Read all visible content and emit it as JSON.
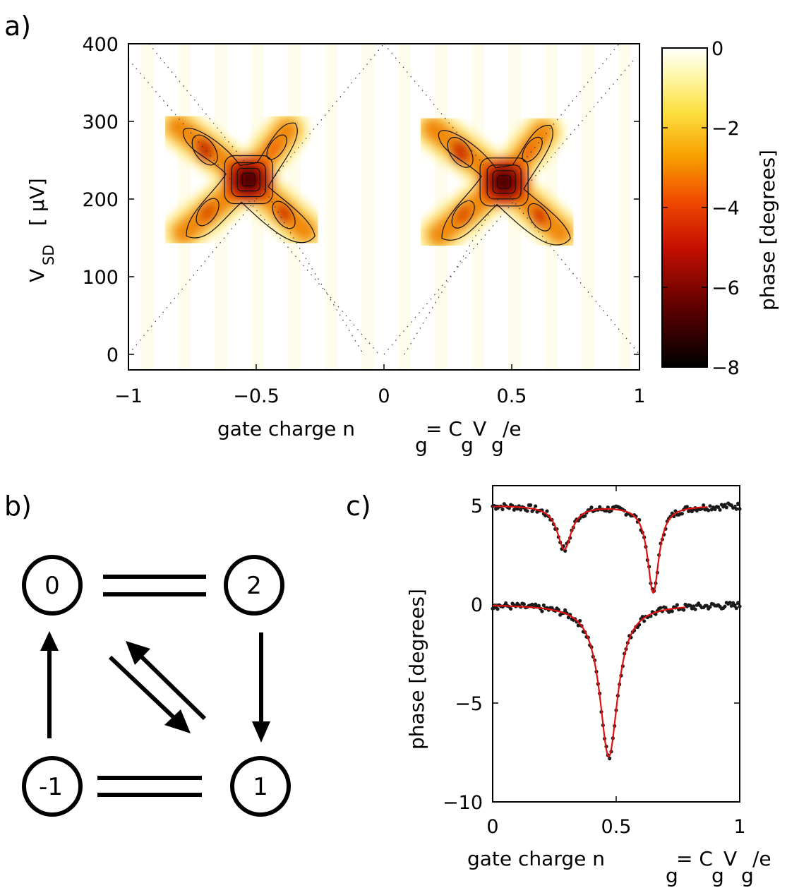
{
  "panels": {
    "a": {
      "label": "a)",
      "chart_data": {
        "type": "heatmap",
        "xlabel": "gate charge n",
        "xlabel_sub1": "g",
        "xlabel_eq": "= C",
        "xlabel_sub2": "g",
        "xlabel_v": "V",
        "xlabel_sub3": "g",
        "xlabel_tail": "/e",
        "ylabel": "V",
        "ylabel_sub": "SD",
        "ylabel_unit": "[ μV]",
        "xlim": [
          -1,
          1
        ],
        "ylim": [
          -20,
          400
        ],
        "xticks": [
          -1,
          -0.5,
          0,
          0.5,
          1
        ],
        "xtick_labels": [
          "−1",
          "−0.5",
          "0",
          "0.5",
          "1"
        ],
        "yticks": [
          0,
          100,
          200,
          300,
          400
        ],
        "ytick_labels": [
          "0",
          "100",
          "200",
          "300",
          "400"
        ],
        "colorbar": {
          "label": "phase [degrees]",
          "range": [
            -8,
            0
          ],
          "ticks": [
            0,
            -2,
            -4,
            -6,
            -8
          ],
          "tick_labels": [
            "0",
            "−2",
            "−4",
            "−6",
            "−8"
          ]
        },
        "features": [
          {
            "center_ng": -0.53,
            "center_vsd": 225,
            "min_phase": -7.5
          },
          {
            "center_ng": 0.47,
            "center_vsd": 222,
            "min_phase": -7.2
          }
        ],
        "grid": false
      }
    },
    "b": {
      "label": "b)",
      "nodes": [
        "0",
        "2",
        "-1",
        "1"
      ],
      "type": "diagram"
    },
    "c": {
      "label": "c)",
      "chart_data": {
        "type": "scatter",
        "xlabel": "gate charge n",
        "xlabel_sub1": "g",
        "xlabel_eq": "= C",
        "xlabel_sub2": "g",
        "xlabel_v": "V",
        "xlabel_sub3": "g",
        "xlabel_tail": "/e",
        "ylabel": "phase [degrees]",
        "xlim": [
          0,
          1
        ],
        "ylim": [
          -10,
          6
        ],
        "xticks": [
          0,
          0.5,
          1
        ],
        "xtick_labels": [
          "0",
          "0.5",
          "1"
        ],
        "yticks": [
          5,
          0,
          -5,
          -10
        ],
        "ytick_labels": [
          "5",
          "0",
          "−5",
          "−10"
        ],
        "series": [
          {
            "offset": 5,
            "dips": [
              {
                "x": 0.29,
                "depth": 2.2,
                "width": 0.035
              },
              {
                "x": 0.65,
                "depth": 4.4,
                "width": 0.028
              }
            ],
            "fit_range": [
              0,
              0.87
            ]
          },
          {
            "offset": 0,
            "dips": [
              {
                "x": 0.47,
                "depth": 7.7,
                "width": 0.045
              }
            ],
            "fit_range": [
              0,
              0.78
            ]
          }
        ],
        "fit_color": "#e01010",
        "data_color": "#1a1a1a"
      }
    }
  }
}
